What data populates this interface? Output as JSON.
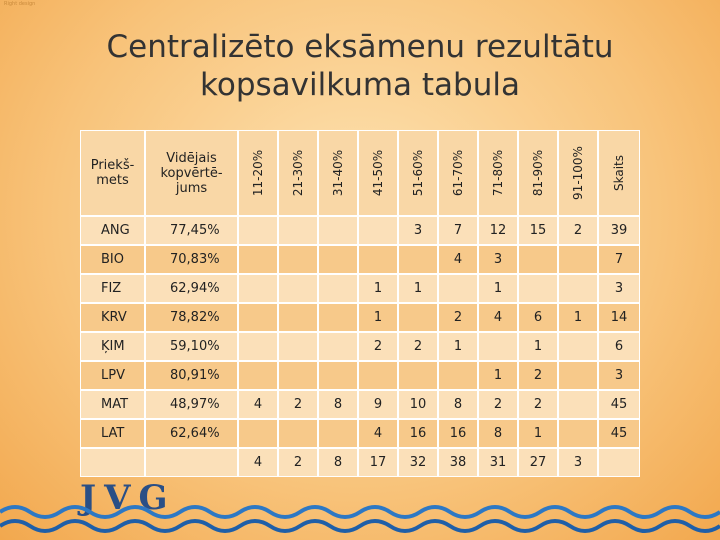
{
  "watermark": "Right design",
  "title": "Centralizēto eksāmenu rezultātu kopsavilkuma tabula",
  "table": {
    "header": [
      "Priekš-mets",
      "Vidējais kopvērtē-jums",
      "11-20%",
      "21-30%",
      "31-40%",
      "41-50%",
      "51-60%",
      "61-70%",
      "71-80%",
      "81-90%",
      "91-100%",
      "Skaits"
    ],
    "rows": [
      [
        "ANG",
        "77,45%",
        null,
        null,
        null,
        null,
        3,
        7,
        12,
        15,
        2,
        39
      ],
      [
        "BIO",
        "70,83%",
        null,
        null,
        null,
        null,
        null,
        4,
        3,
        null,
        null,
        7
      ],
      [
        "FIZ",
        "62,94%",
        null,
        null,
        null,
        1,
        1,
        null,
        1,
        null,
        null,
        3
      ],
      [
        "KRV",
        "78,82%",
        null,
        null,
        null,
        1,
        null,
        2,
        4,
        6,
        1,
        14
      ],
      [
        "ĶIM",
        "59,10%",
        null,
        null,
        null,
        2,
        2,
        1,
        null,
        1,
        null,
        6
      ],
      [
        "LPV",
        "80,91%",
        null,
        null,
        null,
        null,
        null,
        null,
        1,
        2,
        null,
        3
      ],
      [
        "MAT",
        "48,97%",
        4,
        2,
        8,
        9,
        10,
        8,
        2,
        2,
        null,
        45
      ],
      [
        "LAT",
        "62,64%",
        null,
        null,
        null,
        4,
        16,
        16,
        8,
        1,
        null,
        45
      ],
      [
        null,
        null,
        4,
        2,
        8,
        17,
        32,
        38,
        31,
        27,
        3,
        null
      ]
    ]
  },
  "logo": "JVG"
}
